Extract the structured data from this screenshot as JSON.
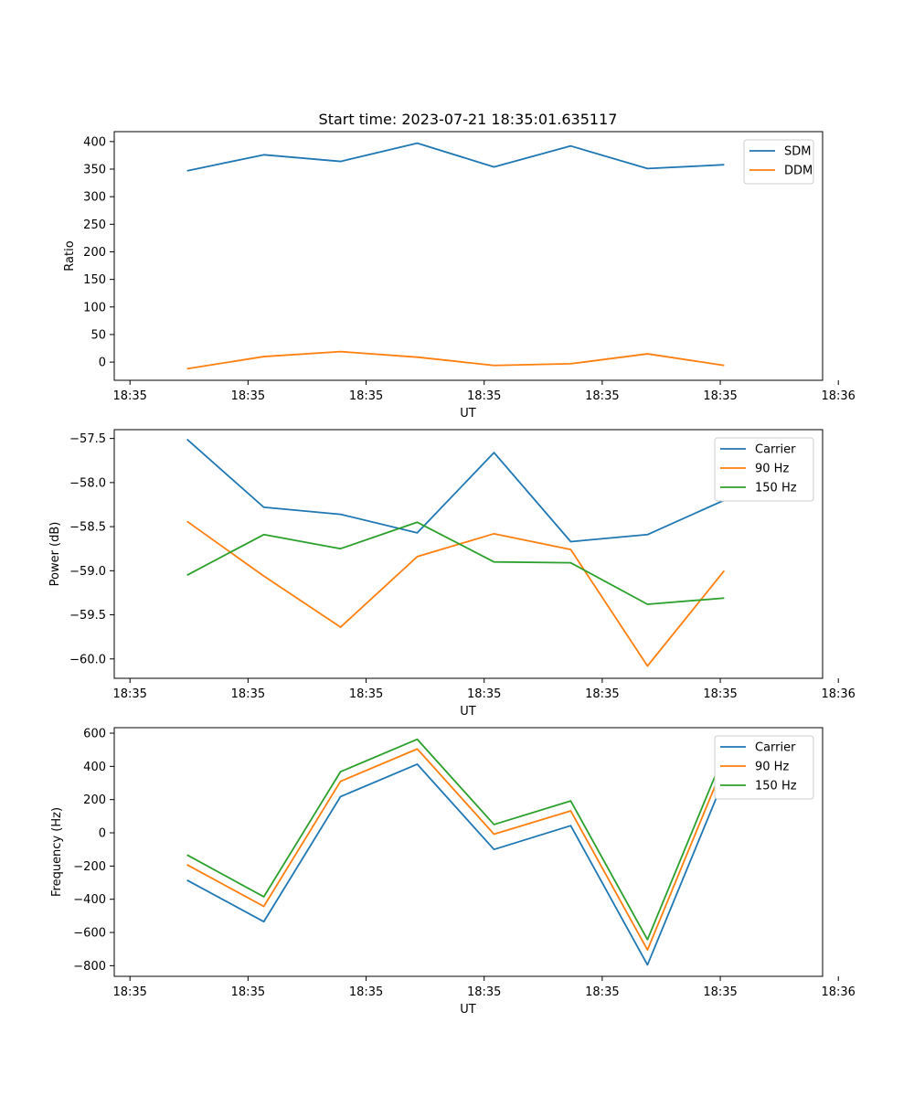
{
  "chart_data": [
    {
      "type": "line",
      "title": "Start time: 2023-07-21 18:35:01.635117",
      "xlabel": "UT",
      "ylabel": "Ratio",
      "xlim": [
        -0.5,
        8.5
      ],
      "ylim": [
        -33,
        418
      ],
      "x_ticks": [
        {
          "value": -0.3,
          "label": "18:35"
        },
        {
          "value": 1.2,
          "label": "18:35"
        },
        {
          "value": 2.7,
          "label": "18:35"
        },
        {
          "value": 4.2,
          "label": "18:35"
        },
        {
          "value": 5.7,
          "label": "18:35"
        },
        {
          "value": 7.2,
          "label": "18:35"
        },
        {
          "value": 8.7,
          "label": "18:36"
        }
      ],
      "y_ticks": [
        0,
        50,
        100,
        150,
        200,
        250,
        300,
        350,
        400
      ],
      "legend_position": "top-right",
      "x": [
        0.425,
        1.4,
        2.375,
        3.35,
        4.325,
        5.3,
        6.275,
        7.25
      ],
      "series": [
        {
          "name": "SDM",
          "color": "#1f77b4",
          "values": [
            347,
            376,
            364,
            397,
            354,
            392,
            351,
            358
          ]
        },
        {
          "name": "DDM",
          "color": "#ff7f0e",
          "values": [
            -12,
            10,
            19,
            9,
            -6,
            -3,
            15,
            -6
          ]
        }
      ]
    },
    {
      "type": "line",
      "title": "",
      "xlabel": "UT",
      "ylabel": "Power (dB)",
      "xlim": [
        -0.5,
        8.5
      ],
      "ylim": [
        -60.22,
        -57.4
      ],
      "x_ticks": [
        {
          "value": -0.3,
          "label": "18:35"
        },
        {
          "value": 1.2,
          "label": "18:35"
        },
        {
          "value": 2.7,
          "label": "18:35"
        },
        {
          "value": 4.2,
          "label": "18:35"
        },
        {
          "value": 5.7,
          "label": "18:35"
        },
        {
          "value": 7.2,
          "label": "18:35"
        },
        {
          "value": 8.7,
          "label": "18:36"
        }
      ],
      "y_ticks": [
        -60.0,
        -59.5,
        -59.0,
        -58.5,
        -58.0,
        -57.5
      ],
      "legend_position": "top-right",
      "x": [
        0.425,
        1.4,
        2.375,
        3.35,
        4.325,
        5.3,
        6.275,
        7.25
      ],
      "series": [
        {
          "name": "Carrier",
          "color": "#1f77b4",
          "values": [
            -57.51,
            -58.28,
            -58.36,
            -58.57,
            -57.66,
            -58.67,
            -58.59,
            -58.2
          ]
        },
        {
          "name": "90 Hz",
          "color": "#ff7f0e",
          "values": [
            -58.44,
            -59.06,
            -59.64,
            -58.84,
            -58.58,
            -58.76,
            -60.08,
            -59.0
          ]
        },
        {
          "name": "150 Hz",
          "color": "#2ca02c",
          "values": [
            -59.05,
            -58.59,
            -58.75,
            -58.45,
            -58.9,
            -58.91,
            -59.38,
            -59.31
          ]
        }
      ]
    },
    {
      "type": "line",
      "title": "",
      "xlabel": "UT",
      "ylabel": "Frequency (Hz)",
      "xlim": [
        -0.5,
        8.5
      ],
      "ylim": [
        -864,
        633
      ],
      "x_ticks": [
        {
          "value": -0.3,
          "label": "18:35"
        },
        {
          "value": 1.2,
          "label": "18:35"
        },
        {
          "value": 2.7,
          "label": "18:35"
        },
        {
          "value": 4.2,
          "label": "18:35"
        },
        {
          "value": 5.7,
          "label": "18:35"
        },
        {
          "value": 7.2,
          "label": "18:35"
        },
        {
          "value": 8.7,
          "label": "18:36"
        }
      ],
      "y_ticks": [
        -800,
        -600,
        -400,
        -200,
        0,
        200,
        400,
        600
      ],
      "legend_position": "top-right",
      "x": [
        0.425,
        1.4,
        2.375,
        3.35,
        4.325,
        5.3,
        6.275,
        7.25
      ],
      "series": [
        {
          "name": "Carrier",
          "color": "#1f77b4",
          "values": [
            -285,
            -535,
            218,
            413,
            -100,
            43,
            -795,
            325
          ]
        },
        {
          "name": "90 Hz",
          "color": "#ff7f0e",
          "values": [
            -192,
            -443,
            310,
            505,
            -8,
            132,
            -705,
            415
          ]
        },
        {
          "name": "150 Hz",
          "color": "#2ca02c",
          "values": [
            -133,
            -385,
            368,
            563,
            50,
            192,
            -643,
            475
          ]
        }
      ]
    }
  ]
}
